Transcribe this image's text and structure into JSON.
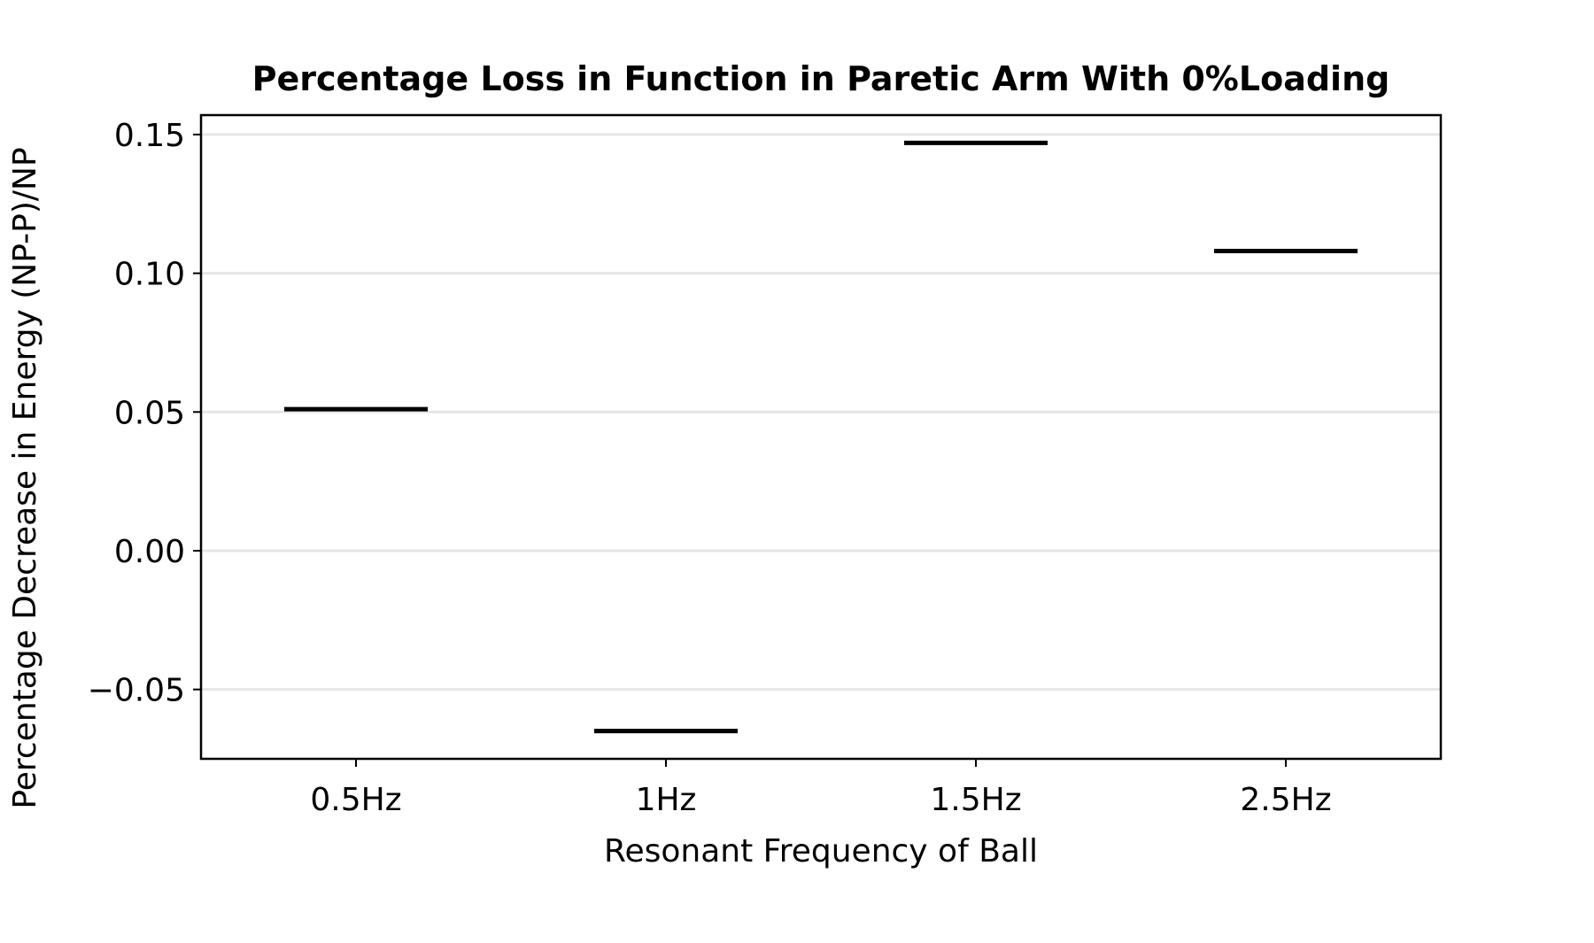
{
  "chart_data": {
    "type": "bar",
    "title": "Percentage Loss in Function in Paretic Arm With 0%Loading",
    "xlabel": "Resonant Frequency of Ball",
    "ylabel": "Percentage Decrease in Energy (NP-P)/NP",
    "categories": [
      "0.5Hz",
      "1Hz",
      "1.5Hz",
      "2.5Hz"
    ],
    "values": [
      0.051,
      -0.065,
      0.147,
      0.108
    ],
    "ylim": [
      -0.075,
      0.157
    ],
    "yticks": [
      -0.05,
      0.0,
      0.05,
      0.1,
      0.15
    ],
    "ytick_labels": [
      "−0.05",
      "0.00",
      "0.05",
      "0.10",
      "0.15"
    ],
    "grid": "horizontal",
    "colors": {
      "marker": "#000000",
      "grid": "#e6e6e6"
    }
  }
}
